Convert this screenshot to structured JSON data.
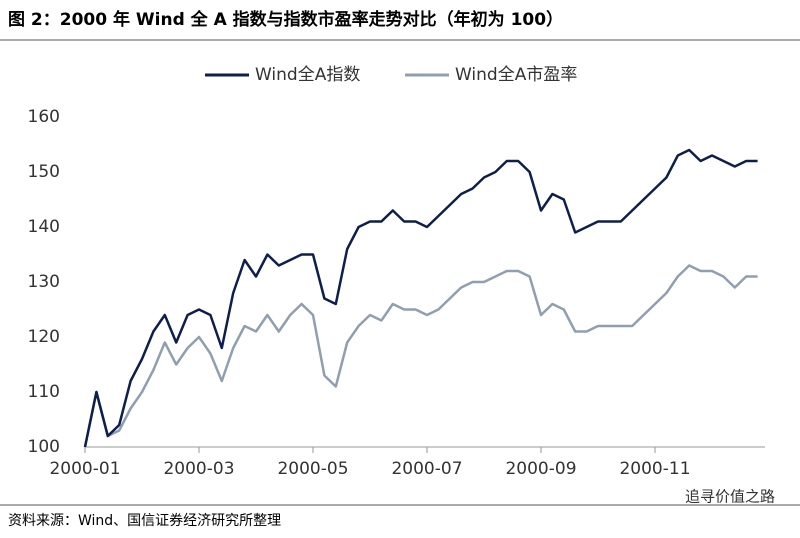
{
  "chart_data": {
    "type": "line",
    "title": "图 2：2000 年 Wind 全 A 指数与指数市盈率走势对比（年初为 100）",
    "source": "资料来源：Wind、国信证券经济研究所整理",
    "watermark": "追寻价值之路",
    "categories": [
      "2000-01",
      null,
      null,
      null,
      null,
      null,
      null,
      null,
      null,
      null,
      "2000-03",
      null,
      null,
      null,
      null,
      null,
      null,
      null,
      null,
      null,
      "2000-05",
      null,
      null,
      null,
      null,
      null,
      null,
      null,
      null,
      null,
      "2000-07",
      null,
      null,
      null,
      null,
      null,
      null,
      null,
      null,
      null,
      "2000-09",
      null,
      null,
      null,
      null,
      null,
      null,
      null,
      null,
      null,
      "2000-11",
      null,
      null,
      null,
      null,
      null,
      null,
      null,
      null,
      null
    ],
    "series": [
      {
        "name": "Wind全A指数",
        "color": "#0e1f4d",
        "values": [
          100,
          110,
          102,
          104,
          112,
          116,
          121,
          124,
          119,
          124,
          125,
          124,
          118,
          128,
          134,
          131,
          135,
          133,
          134,
          135,
          135,
          127,
          126,
          136,
          140,
          141,
          141,
          143,
          141,
          141,
          140,
          142,
          144,
          146,
          147,
          149,
          150,
          152,
          152,
          150,
          143,
          146,
          145,
          139,
          140,
          141,
          141,
          141,
          143,
          145,
          147,
          149,
          153,
          154,
          152,
          153,
          152,
          151,
          152,
          152
        ]
      },
      {
        "name": "Wind全A市盈率",
        "color": "#8f9fb0",
        "values": [
          100,
          110,
          102,
          103,
          107,
          110,
          114,
          119,
          115,
          118,
          120,
          117,
          112,
          118,
          122,
          121,
          124,
          121,
          124,
          126,
          124,
          113,
          111,
          119,
          122,
          124,
          123,
          126,
          125,
          125,
          124,
          125,
          127,
          129,
          130,
          130,
          131,
          132,
          132,
          131,
          124,
          126,
          125,
          121,
          121,
          122,
          122,
          122,
          122,
          124,
          126,
          128,
          131,
          133,
          132,
          132,
          131,
          129,
          131,
          131
        ]
      }
    ],
    "ylim": [
      100,
      160
    ],
    "yticks": [
      100,
      110,
      120,
      130,
      140,
      150,
      160
    ],
    "legend": "top",
    "grid": false
  }
}
